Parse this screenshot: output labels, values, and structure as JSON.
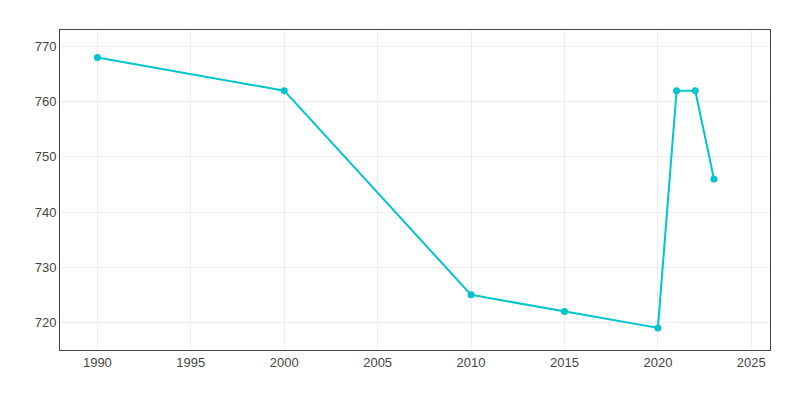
{
  "chart_data": {
    "type": "line",
    "x": [
      1990,
      2000,
      2010,
      2015,
      2020,
      2021,
      2022,
      2023
    ],
    "values": [
      768,
      762,
      725,
      722,
      719,
      762,
      762,
      746
    ],
    "color": "#00c5cd",
    "marker": "circle",
    "xlim": [
      1988,
      2026
    ],
    "ylim": [
      715,
      773
    ],
    "xticks": [
      1990,
      1995,
      2000,
      2005,
      2010,
      2015,
      2020,
      2025
    ],
    "yticks": [
      720,
      730,
      740,
      750,
      760,
      770
    ],
    "grid": true
  }
}
